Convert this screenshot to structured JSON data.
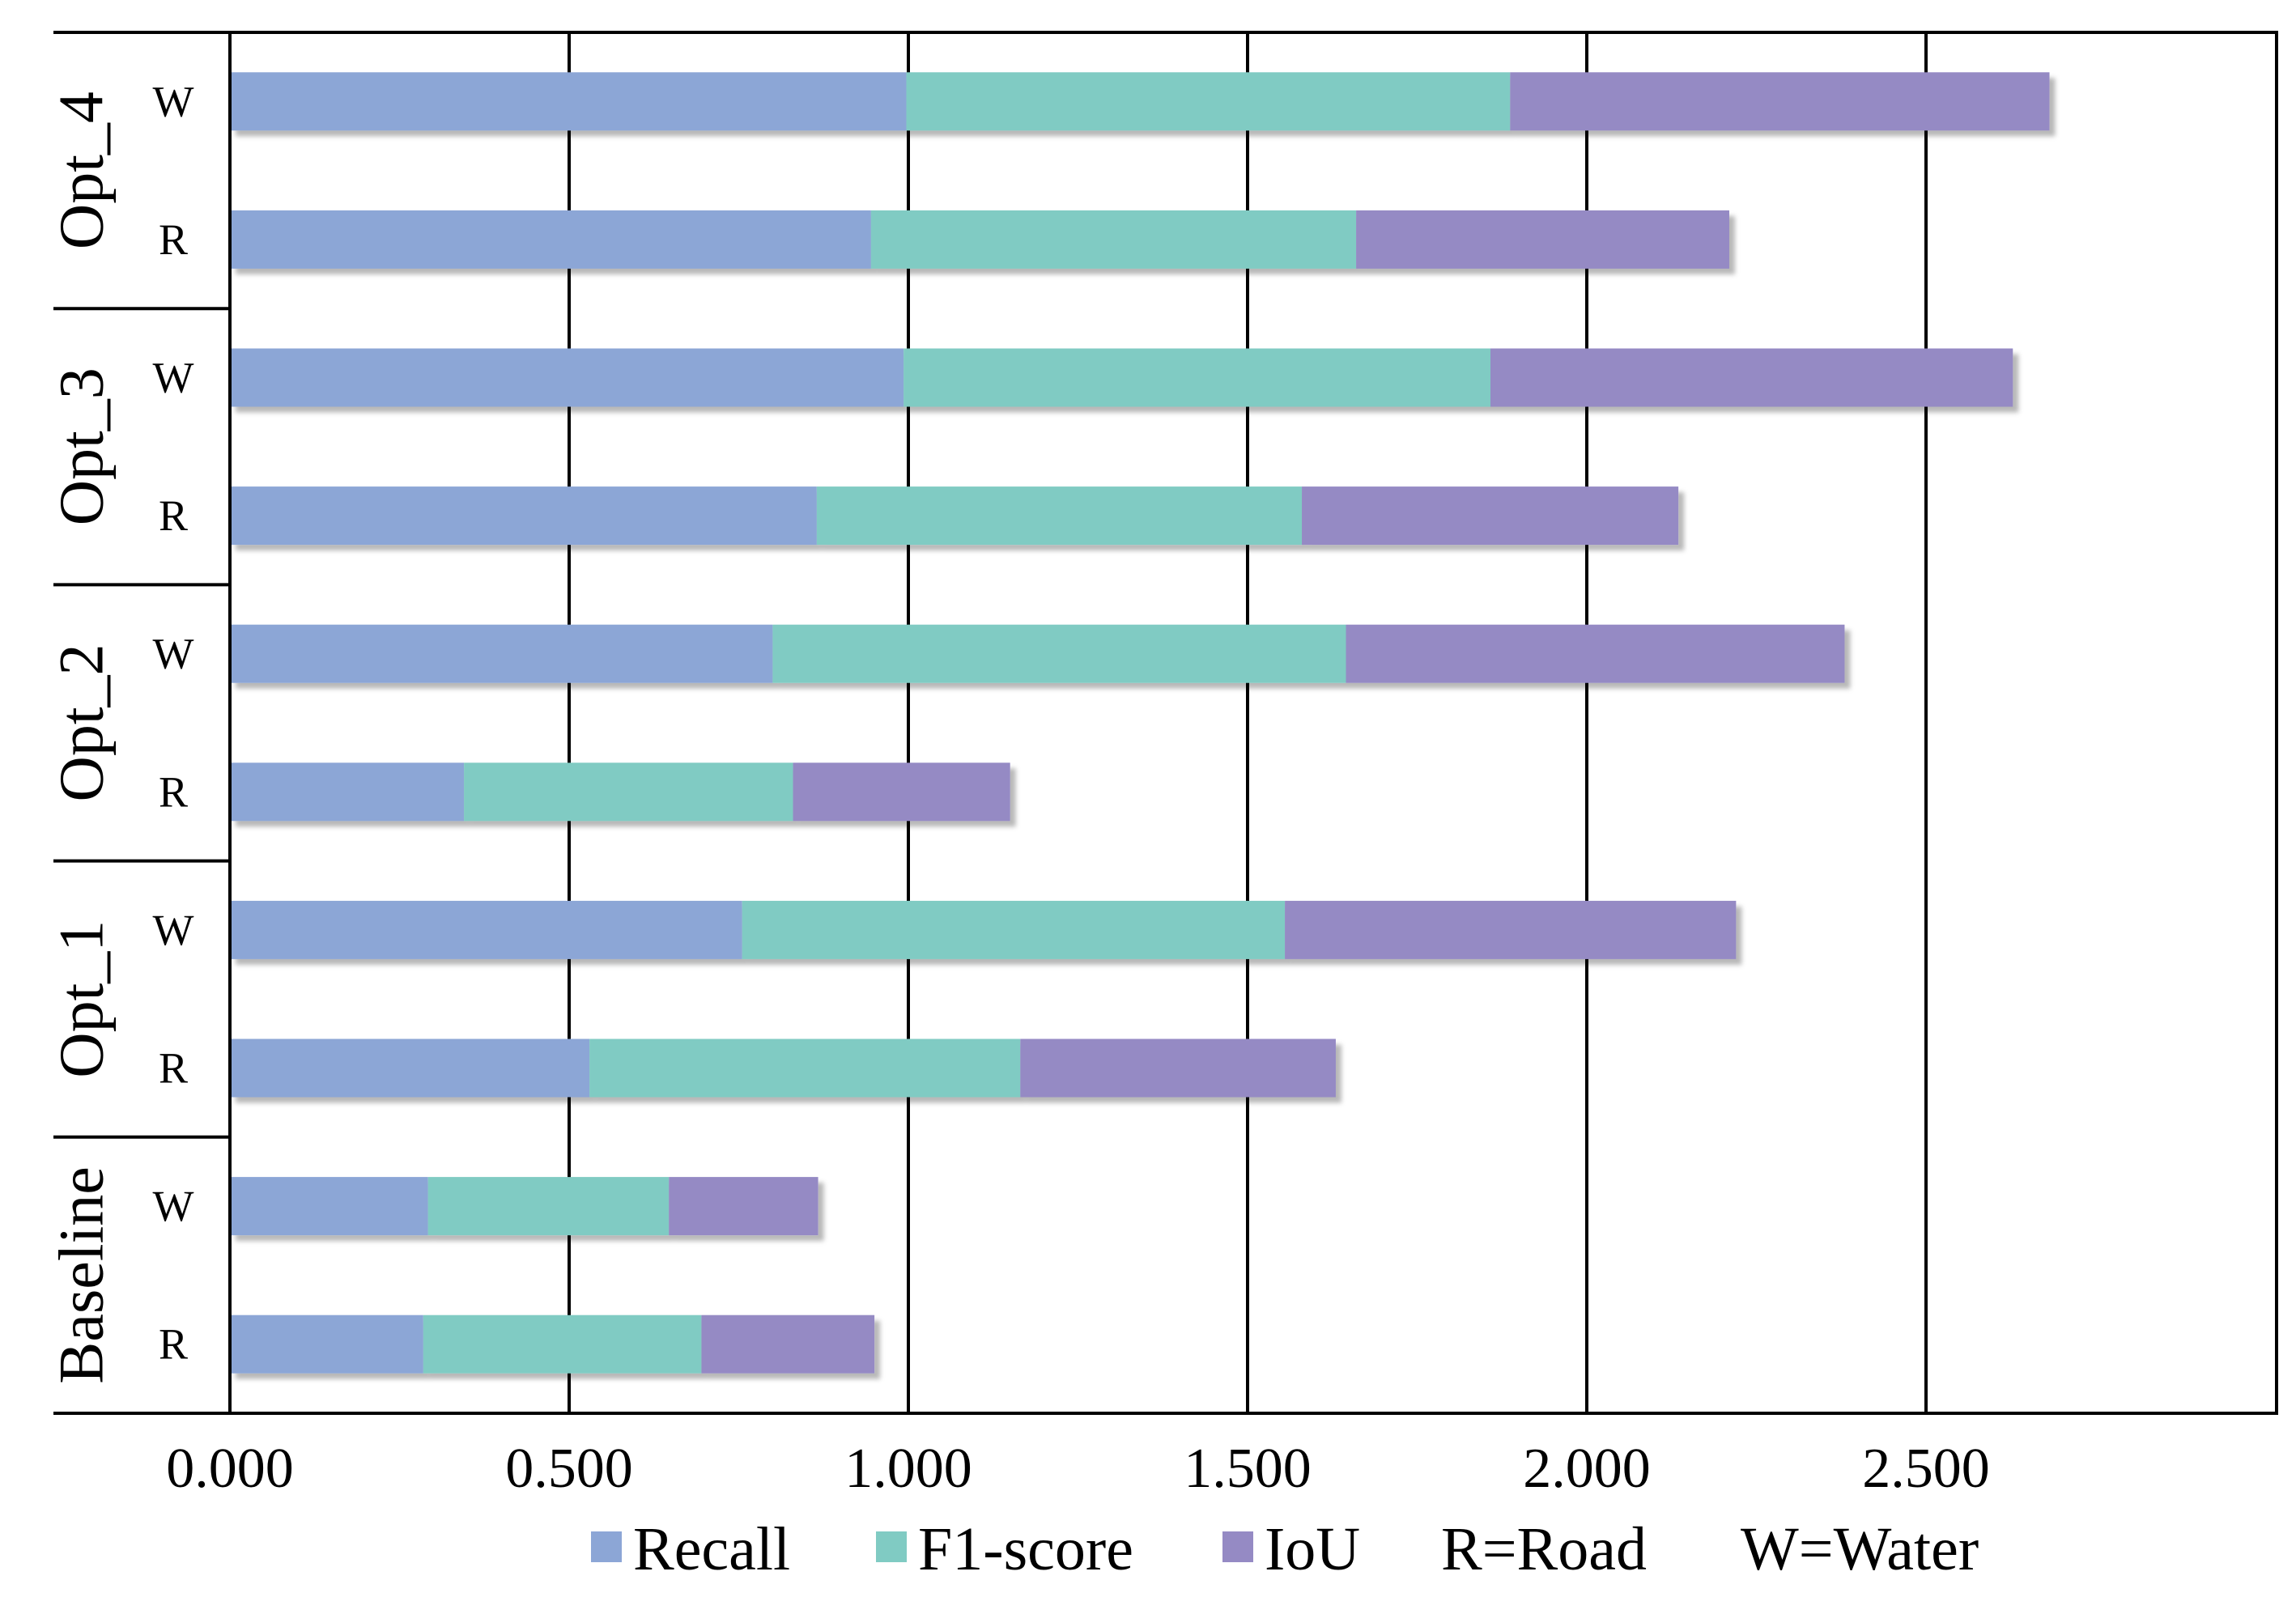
{
  "chart_data": {
    "type": "bar",
    "orientation": "horizontal",
    "stacked": true,
    "title": "",
    "xlabel": "",
    "ylabel": "",
    "xlim": [
      0,
      3.0
    ],
    "x_ticks": [
      "0.000",
      "0.500",
      "1.000",
      "1.500",
      "2.000",
      "2.500"
    ],
    "grid": true,
    "legend_position": "bottom",
    "groups": [
      {
        "name": "Baseline",
        "rows": [
          "R",
          "W"
        ]
      },
      {
        "name": "Opt_1",
        "rows": [
          "R",
          "W"
        ]
      },
      {
        "name": "Opt_2",
        "rows": [
          "R",
          "W"
        ]
      },
      {
        "name": "Opt_3",
        "rows": [
          "R",
          "W"
        ]
      },
      {
        "name": "Opt_4",
        "rows": [
          "R",
          "W"
        ]
      }
    ],
    "categories": [
      "Baseline R",
      "Baseline W",
      "Opt_1 R",
      "Opt_1 W",
      "Opt_2 R",
      "Opt_2 W",
      "Opt_3 R",
      "Opt_3 W",
      "Opt_4 R",
      "Opt_4 W"
    ],
    "series": [
      {
        "name": "Recall",
        "color": "#8CA6D6",
        "values": [
          0.285,
          0.292,
          0.53,
          0.755,
          0.345,
          0.8,
          0.865,
          0.993,
          0.945,
          0.997
        ]
      },
      {
        "name": "F1-score",
        "color": "#80CBC3",
        "values": [
          0.41,
          0.355,
          0.635,
          0.8,
          0.485,
          0.845,
          0.715,
          0.865,
          0.715,
          0.89
        ]
      },
      {
        "name": "IoU",
        "color": "#958AC4",
        "values": [
          0.255,
          0.22,
          0.465,
          0.665,
          0.32,
          0.735,
          0.555,
          0.77,
          0.55,
          0.795
        ]
      }
    ],
    "legend_notes": [
      "R=Road",
      "W=Water"
    ]
  }
}
